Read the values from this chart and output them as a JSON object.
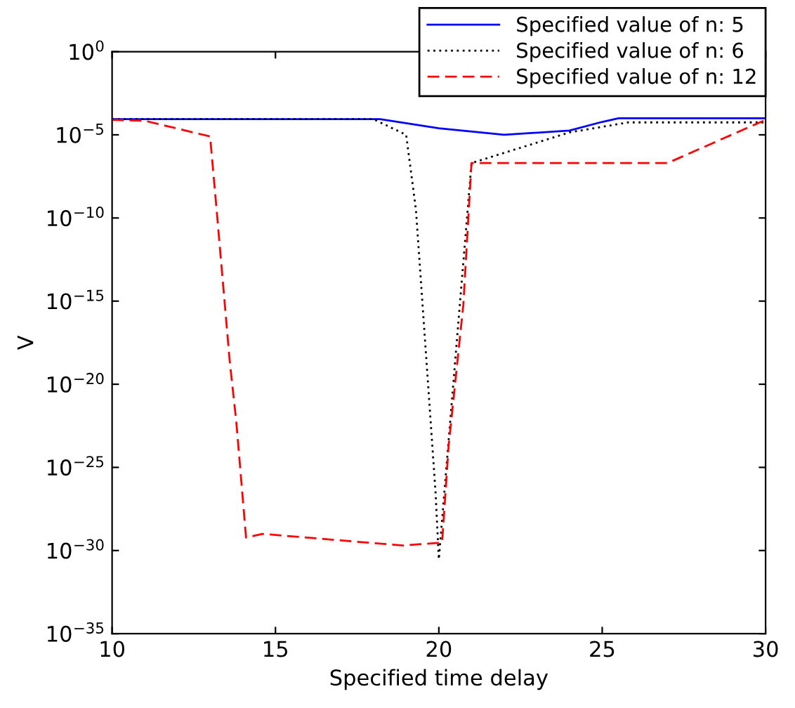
{
  "chart_data": {
    "type": "line",
    "xlabel": "Specified time delay",
    "ylabel": "V",
    "log": "y",
    "xlim": [
      10,
      30
    ],
    "xticks": [
      10,
      15,
      20,
      25,
      30
    ],
    "ylim": [
      1e-35,
      1
    ],
    "yticks": [
      {
        "value": 1e-35,
        "label": "10$^{−35}$"
      },
      {
        "value": 1e-30,
        "label": "10$^{−30}$"
      },
      {
        "value": 1e-25,
        "label": "10$^{−25}$"
      },
      {
        "value": 1e-20,
        "label": "10$^{−20}$"
      },
      {
        "value": 1e-15,
        "label": "10$^{−15}$"
      },
      {
        "value": 1e-10,
        "label": "10$^{−10}$"
      },
      {
        "value": 1e-05,
        "label": "10$^{−5}$"
      },
      {
        "value": 1,
        "label": "10$^{0}$"
      }
    ],
    "grid": false,
    "legend": "top right",
    "series": [
      {
        "name": "Specified value of n: 5",
        "color": "#0000ff",
        "line_style": "solid",
        "x": [
          10,
          18.2,
          20,
          22,
          24,
          25,
          25.5,
          30
        ],
        "values": [
          8.7e-05,
          8.7e-05,
          2.5e-05,
          1e-05,
          1.8e-05,
          6e-05,
          0.0001,
          0.0001
        ]
      },
      {
        "name": "Specified value of n: 6",
        "color": "#000000",
        "line_style": "dotted",
        "x": [
          10,
          18,
          19,
          19.3,
          19.6,
          19.9,
          20,
          21,
          24,
          25.8,
          30
        ],
        "values": [
          8.7e-05,
          8.7e-05,
          1e-05,
          3e-10,
          1e-18,
          3e-27,
          3e-31,
          2e-07,
          1.4e-05,
          5.6e-05,
          5.6e-05
        ]
      },
      {
        "name": "Specified value of n: 12",
        "color": "#ff0000",
        "line_style": "dashed",
        "x": [
          10,
          11,
          13,
          13.2,
          13.6,
          13.8,
          14.1,
          14.6,
          18.9,
          20.1,
          20.3,
          20.75,
          21,
          27,
          30
        ],
        "values": [
          8e-05,
          7e-05,
          8e-06,
          3e-10,
          2.5e-19,
          6e-23,
          6e-30,
          1e-29,
          2e-30,
          3e-30,
          2e-24,
          6e-16,
          2e-07,
          2e-07,
          8e-05
        ]
      }
    ]
  }
}
